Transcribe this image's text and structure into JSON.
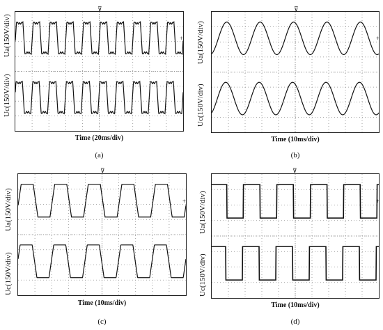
{
  "panels": [
    {
      "id": "a",
      "caption": "(a)",
      "time_label": "Time (20ms/div)",
      "channels": [
        {
          "label": "Ua(150V/div)",
          "waveform": "flat-top ripple",
          "cycles": 10
        },
        {
          "label": "Uc(150V/div)",
          "waveform": "flat-top ripple",
          "cycles": 10
        }
      ]
    },
    {
      "id": "b",
      "caption": "(b)",
      "time_label": "Time (10ms/div)",
      "channels": [
        {
          "label": "Ua(150V/div)",
          "waveform": "sine",
          "cycles": 5
        },
        {
          "label": "Uc(150V/div)",
          "waveform": "sine",
          "cycles": 5
        }
      ]
    },
    {
      "id": "c",
      "caption": "(c)",
      "time_label": "Time (10ms/div)",
      "channels": [
        {
          "label": "Ua(150V/div)",
          "waveform": "trapezoid",
          "cycles": 5
        },
        {
          "label": "Uc(150V/div)",
          "waveform": "trapezoid",
          "cycles": 5
        }
      ]
    },
    {
      "id": "d",
      "caption": "(d)",
      "time_label": "Time (10ms/div)",
      "channels": [
        {
          "label": "Ua(150V/div)",
          "waveform": "square",
          "cycles": 5
        },
        {
          "label": "Uc(150V/div)",
          "waveform": "square",
          "cycles": 5
        }
      ]
    }
  ],
  "colors": {
    "trace": "#111111",
    "grid": "#8a8a8a",
    "frame": "#222222"
  },
  "chart_data": [
    {
      "type": "line",
      "title": "",
      "xlabel": "Time (20ms/div)",
      "ylabel": "",
      "grid": true,
      "series": [
        {
          "name": "Ua(150V/div)",
          "shape": "flat-top ripple",
          "cycles": 10
        },
        {
          "name": "Uc(150V/div)",
          "shape": "flat-top ripple",
          "cycles": 10
        }
      ]
    },
    {
      "type": "line",
      "title": "",
      "xlabel": "Time (10ms/div)",
      "ylabel": "",
      "grid": true,
      "series": [
        {
          "name": "Ua(150V/div)",
          "shape": "sine",
          "cycles": 5
        },
        {
          "name": "Uc(150V/div)",
          "shape": "sine",
          "cycles": 5
        }
      ]
    },
    {
      "type": "line",
      "title": "",
      "xlabel": "Time (10ms/div)",
      "ylabel": "",
      "grid": true,
      "series": [
        {
          "name": "Ua(150V/div)",
          "shape": "trapezoid",
          "cycles": 5
        },
        {
          "name": "Uc(150V/div)",
          "shape": "trapezoid",
          "cycles": 5
        }
      ]
    },
    {
      "type": "line",
      "title": "",
      "xlabel": "Time (10ms/div)",
      "ylabel": "",
      "grid": true,
      "series": [
        {
          "name": "Ua(150V/div)",
          "shape": "square",
          "cycles": 5
        },
        {
          "name": "Uc(150V/div)",
          "shape": "square",
          "cycles": 5
        }
      ]
    }
  ]
}
